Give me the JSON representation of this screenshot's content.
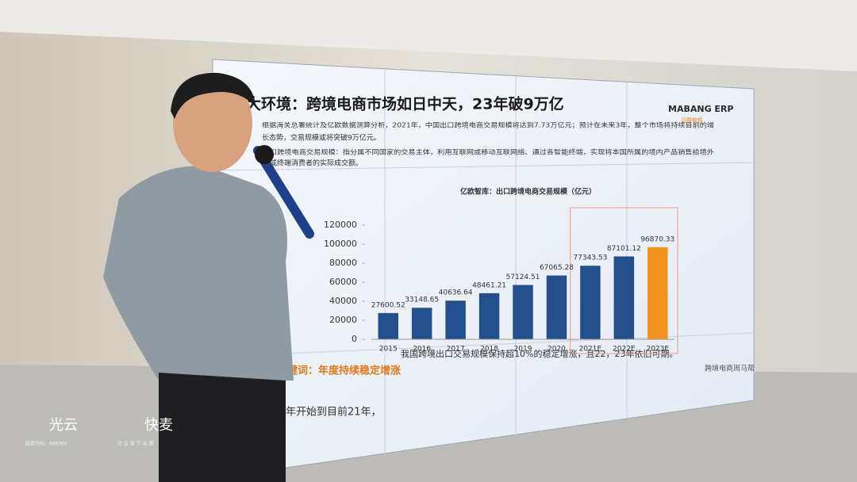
{
  "slide": {
    "title": "大环境：跨境电商市场如日中天，23年破9万亿",
    "logo": "MABANG ERP",
    "logo_sub": "马帮软件",
    "paragraph1_line1": "根据海关总署统计及亿欧数据测算分析，2021年，中国出口跨境电商交易规模将达到7.73万亿元；预计在未来3年，整个市场将持续目前的增",
    "paragraph1_line2": "长态势，交易规模或将突破9万亿元。",
    "paragraph2_line1": "口跨境电商交易规模：指分属不同国家的交易主体，利用互联网或移动互联网络、通过各智能终端，实现将本国所属的境内产品销售给境外",
    "paragraph2_line2": "或终端消费者的实际成交额。",
    "keyword": "键词：年度持续稳定增涨",
    "keyword_text": "我国跨境出口交易规模保持超10%的稳定增涨，且22，23年依旧可期。",
    "bottom_text": "年开始到目前21年，",
    "footer": "跨境电商周马帮"
  },
  "chart_data": {
    "type": "bar",
    "title": "亿欧智库：出口跨境电商交易规模（亿元）",
    "categories": [
      "2015",
      "2016",
      "2017",
      "2018",
      "2019",
      "2020",
      "2021E",
      "2022E",
      "2023E"
    ],
    "values": [
      27600.52,
      33148.65,
      40636.64,
      48461.21,
      57124.51,
      67065.28,
      77343.53,
      87101.12,
      96870.33
    ],
    "colors": [
      "#234f8d",
      "#234f8d",
      "#234f8d",
      "#234f8d",
      "#234f8d",
      "#234f8d",
      "#234f8d",
      "#234f8d",
      "#f0921c"
    ],
    "ylim": [
      0,
      120000
    ],
    "yticks": [
      0,
      20000,
      40000,
      60000,
      80000,
      100000,
      120000
    ]
  },
  "watermark": {
    "brand1": "光云",
    "brand1_sub": "股票代码：688365",
    "brand2": "快麦",
    "brand2_sub": "光 云 旗 下 品 牌"
  }
}
